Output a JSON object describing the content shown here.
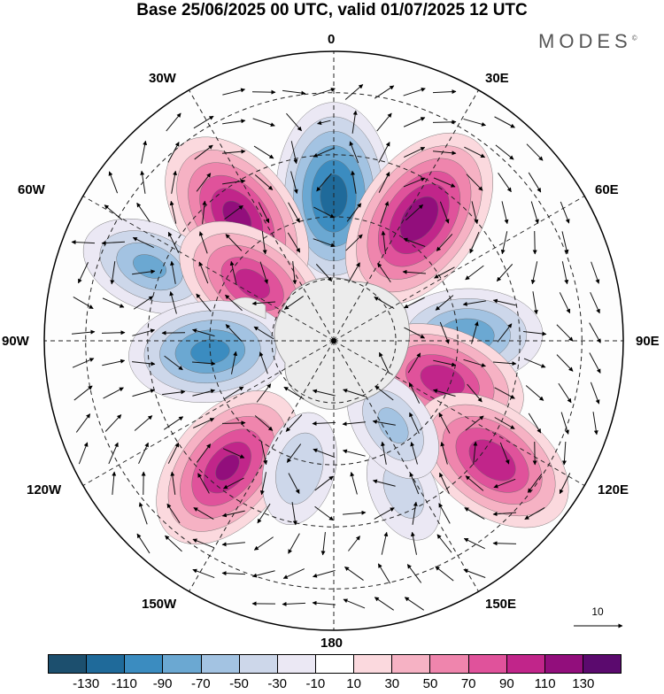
{
  "title": "Base 25/06/2025 00 UTC, valid 01/07/2025 12 UTC",
  "brand": "MODES",
  "brand_mark": "©",
  "longitude_labels": {
    "top": "0",
    "top_right": "30E",
    "right_upper": "60E",
    "right": "90E",
    "right_lower": "120E",
    "bottom_right": "150E",
    "bottom": "180",
    "bottom_left": "150W",
    "left_lower": "120W",
    "left": "90W",
    "left_upper": "60W",
    "top_left": "30W"
  },
  "reference_vector_label": "10",
  "colorbar": {
    "colors": [
      "#1c4f6e",
      "#1f6a9a",
      "#3b8cc0",
      "#6ba8d2",
      "#a3c3e2",
      "#cdd7ea",
      "#ebe8f4",
      "#ffffff",
      "#fbd9de",
      "#f6b2c4",
      "#ef85ad",
      "#e0529b",
      "#c1258a",
      "#920e7c",
      "#5b0a6e"
    ],
    "tick_labels": [
      "-130",
      "-110",
      "-90",
      "-70",
      "-50",
      "-30",
      "-10",
      "10",
      "30",
      "50",
      "70",
      "90",
      "110",
      "130"
    ]
  },
  "anomaly_centers": [
    {
      "name": "cell-0-negative",
      "lon": 0,
      "lat": -55,
      "value": -120
    },
    {
      "name": "cell-30w-positive",
      "lon": -38,
      "lat": -52,
      "value": 115
    },
    {
      "name": "cell-30e-positive",
      "lon": 35,
      "lat": -54,
      "value": 125
    },
    {
      "name": "cell-60w-negative",
      "lon": -68,
      "lat": -42,
      "value": -70
    },
    {
      "name": "cell-45w-positive",
      "lon": -55,
      "lat": -66,
      "value": 95
    },
    {
      "name": "cell-90e-negative",
      "lon": 88,
      "lat": -58,
      "value": -85
    },
    {
      "name": "cell-90w-negative",
      "lon": -95,
      "lat": -60,
      "value": -95
    },
    {
      "name": "cell-110e-positive",
      "lon": 110,
      "lat": -62,
      "value": 100
    },
    {
      "name": "cell-125e-positive",
      "lon": 127,
      "lat": -42,
      "value": 105
    },
    {
      "name": "cell-135w-positive",
      "lon": -140,
      "lat": -50,
      "value": 110
    },
    {
      "name": "cell-155w-negative",
      "lon": -165,
      "lat": -58,
      "value": -45
    },
    {
      "name": "cell-150e-negative",
      "lon": 155,
      "lat": -50,
      "value": -35
    },
    {
      "name": "cell-160e-negative",
      "lon": 145,
      "lat": -65,
      "value": -50
    }
  ]
}
